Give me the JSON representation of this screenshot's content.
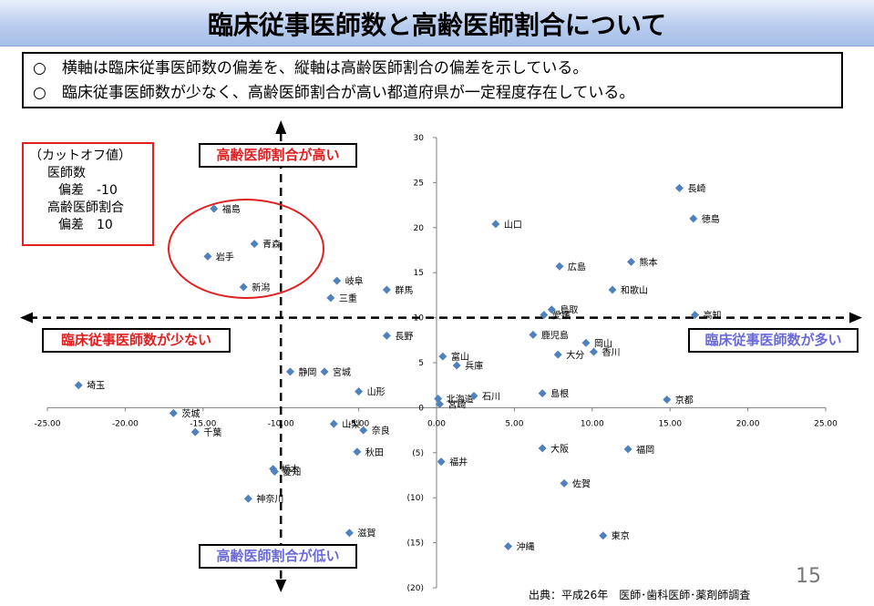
{
  "title": "臨床従事医師数と高齢医師割合について",
  "notes": [
    "○　横軸は臨床従事医師数の偏差を、縦軸は高齢医師割合の偏差を示している。",
    "○　臨床従事医師数が少なく、高齢医師割合が高い都道府県が一定程度存在している。"
  ],
  "cutoff": {
    "heading": "（カットオフ値）",
    "line1": "医師数",
    "line2": "偏差　-10",
    "line3": "高齢医師割合",
    "line4": "偏差　10"
  },
  "quadrant_labels": {
    "top": "高齢医師割合が高い",
    "bottom": "高齢医師割合が低い",
    "left": "臨床従事医師数が少ない",
    "right": "臨床従事医師数が多い"
  },
  "source": "出典：平成26年　医師･歯科医師･薬剤師調査",
  "page_number": "15",
  "colors": {
    "marker": "#4f81bd",
    "red": "#e02020",
    "blue": "#6a6ad8"
  },
  "chart_data": {
    "type": "scatter",
    "xlim": [
      -25,
      25
    ],
    "ylim": [
      -20,
      30
    ],
    "x_ticks": [
      "-25.00",
      "-20.00",
      "-15.00",
      "-10.00",
      "-5.00",
      "0.00",
      "5.00",
      "10.00",
      "15.00",
      "20.00",
      "25.00"
    ],
    "y_ticks": [
      "30",
      "25",
      "20",
      "15",
      "10",
      "5",
      "0",
      "(5)",
      "(10)",
      "(15)",
      "(20)"
    ],
    "cutoff_x": -10,
    "cutoff_y": 10,
    "points": [
      {
        "label": "福島",
        "x": -14.3,
        "y": 22.1
      },
      {
        "label": "青森",
        "x": -11.7,
        "y": 18.2
      },
      {
        "label": "岩手",
        "x": -14.7,
        "y": 16.8
      },
      {
        "label": "新潟",
        "x": -12.4,
        "y": 13.4
      },
      {
        "label": "岐阜",
        "x": -6.4,
        "y": 14.1
      },
      {
        "label": "三重",
        "x": -6.8,
        "y": 12.2
      },
      {
        "label": "群馬",
        "x": -3.2,
        "y": 13.1
      },
      {
        "label": "長野",
        "x": -3.2,
        "y": 8.0
      },
      {
        "label": "埼玉",
        "x": -23.0,
        "y": 2.5
      },
      {
        "label": "静岡",
        "x": -9.4,
        "y": 4.0
      },
      {
        "label": "宮城",
        "x": -7.2,
        "y": 4.0
      },
      {
        "label": "山形",
        "x": -5.0,
        "y": 1.8
      },
      {
        "label": "茨城",
        "x": -16.9,
        "y": -0.6
      },
      {
        "label": "千葉",
        "x": -15.5,
        "y": -2.7
      },
      {
        "label": "山梨",
        "x": -6.6,
        "y": -1.8
      },
      {
        "label": "奈良",
        "x": -4.7,
        "y": -2.5
      },
      {
        "label": "秋田",
        "x": -5.1,
        "y": -4.9
      },
      {
        "label": "栃木",
        "x": -10.5,
        "y": -6.8
      },
      {
        "label": "愛知",
        "x": -10.4,
        "y": -7.1
      },
      {
        "label": "神奈川",
        "x": -12.1,
        "y": -10.1
      },
      {
        "label": "滋賀",
        "x": -5.6,
        "y": -13.9
      },
      {
        "label": "山口",
        "x": 3.8,
        "y": 20.4
      },
      {
        "label": "長崎",
        "x": 15.6,
        "y": 24.4
      },
      {
        "label": "徳島",
        "x": 16.5,
        "y": 21.0
      },
      {
        "label": "熊本",
        "x": 12.5,
        "y": 16.2
      },
      {
        "label": "広島",
        "x": 7.9,
        "y": 15.7
      },
      {
        "label": "和歌山",
        "x": 11.3,
        "y": 13.1
      },
      {
        "label": "愛媛",
        "x": 6.9,
        "y": 10.3
      },
      {
        "label": "鳥取",
        "x": 7.4,
        "y": 10.9
      },
      {
        "label": "高知",
        "x": 16.6,
        "y": 10.3
      },
      {
        "label": "鹿児島",
        "x": 6.2,
        "y": 8.1
      },
      {
        "label": "岡山",
        "x": 9.6,
        "y": 7.2
      },
      {
        "label": "香川",
        "x": 10.1,
        "y": 6.2
      },
      {
        "label": "大分",
        "x": 7.8,
        "y": 5.9
      },
      {
        "label": "富山",
        "x": 0.4,
        "y": 5.7
      },
      {
        "label": "兵庫",
        "x": 1.3,
        "y": 4.7
      },
      {
        "label": "北海道",
        "x": 0.1,
        "y": 1.0
      },
      {
        "label": "石川",
        "x": 2.4,
        "y": 1.3
      },
      {
        "label": "宮崎",
        "x": 0.2,
        "y": 0.4
      },
      {
        "label": "島根",
        "x": 6.8,
        "y": 1.6
      },
      {
        "label": "京都",
        "x": 14.8,
        "y": 0.9
      },
      {
        "label": "大阪",
        "x": 6.8,
        "y": -4.5
      },
      {
        "label": "福岡",
        "x": 12.3,
        "y": -4.6
      },
      {
        "label": "福井",
        "x": 0.3,
        "y": -6.0
      },
      {
        "label": "佐賀",
        "x": 8.2,
        "y": -8.4
      },
      {
        "label": "東京",
        "x": 10.7,
        "y": -14.2
      },
      {
        "label": "沖縄",
        "x": 4.6,
        "y": -15.4
      }
    ]
  }
}
